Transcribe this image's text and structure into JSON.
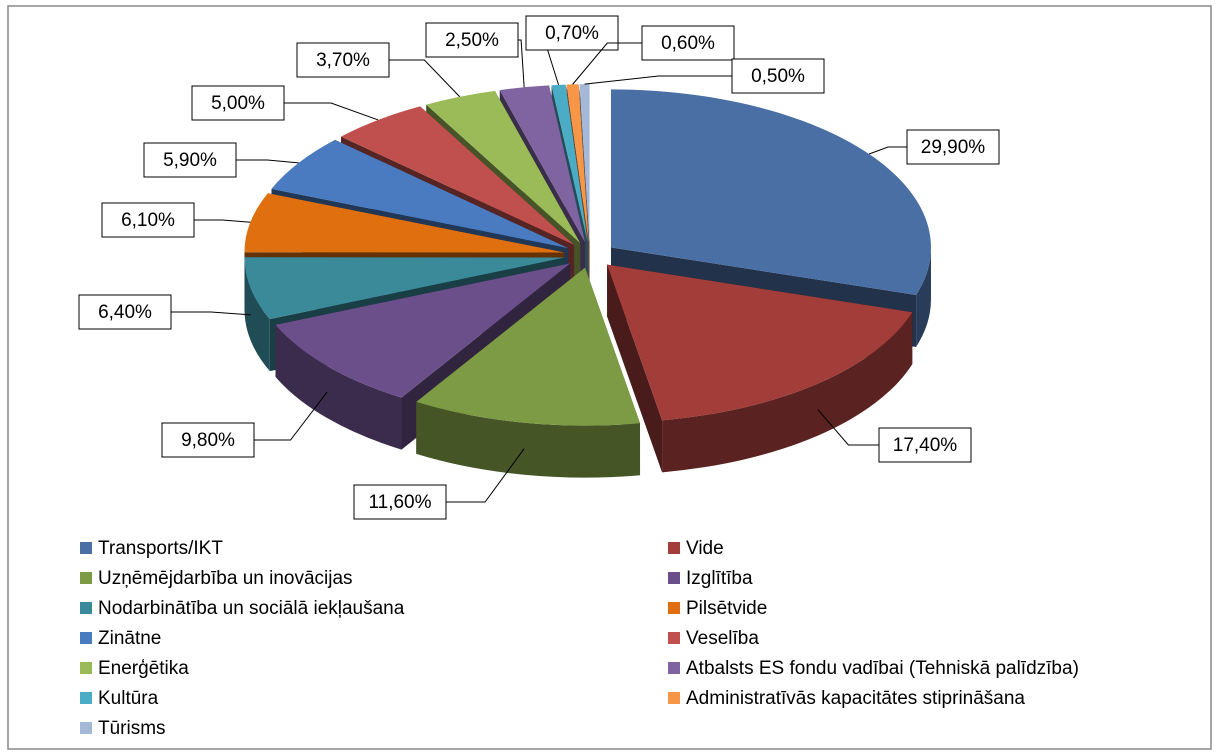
{
  "chart_data": {
    "type": "pie3d",
    "categories": [
      "Transports/IKT",
      "Vide",
      "Uzņēmējdarbība un inovācijas",
      "Izglītība",
      "Nodarbinātība un sociālā iekļaušana",
      "Pilsētvide",
      "Zinātne",
      "Veselība",
      "Enerģētika",
      "Atbalsts ES fondu vadībai (Tehniskā palīdzība)",
      "Kultūra",
      "Administratīvās kapacitātes stiprināšana",
      "Tūrisms"
    ],
    "values": [
      29.9,
      17.4,
      11.6,
      9.8,
      6.4,
      6.1,
      5.9,
      5.0,
      3.7,
      2.5,
      0.7,
      0.6,
      0.5
    ],
    "value_labels": [
      "29,90%",
      "17,40%",
      "11,60%",
      "9,80%",
      "6,40%",
      "6,10%",
      "5,90%",
      "5,00%",
      "3,70%",
      "2,50%",
      "0,70%",
      "0,60%",
      "0,50%"
    ],
    "colors": [
      "#4a6fa5",
      "#a33d3a",
      "#7d9a45",
      "#6b4f8a",
      "#3a8a9a",
      "#e0700f",
      "#4a7ac0",
      "#c0504d",
      "#9bbb59",
      "#8064a2",
      "#4bacc6",
      "#f79646",
      "#a5b8d8"
    ],
    "legend": "bottom"
  }
}
